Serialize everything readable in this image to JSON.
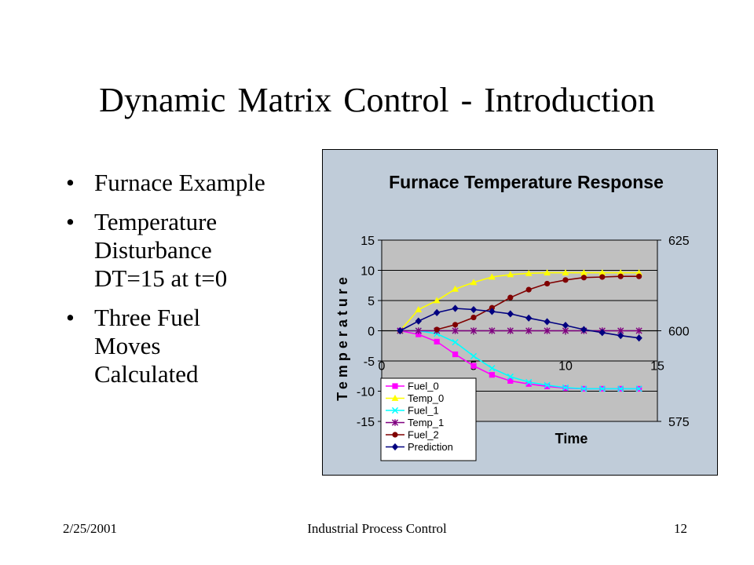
{
  "slide": {
    "title": "Dynamic Matrix Control - Introduction",
    "bullets": [
      {
        "lines": [
          "Furnace Example"
        ]
      },
      {
        "lines": [
          "Temperature",
          "Disturbance",
          "DT=15 at t=0"
        ]
      },
      {
        "lines": [
          "Three Fuel",
          "Moves",
          "Calculated"
        ]
      }
    ]
  },
  "footer": {
    "date": "2/25/2001",
    "center": "Industrial Process Control",
    "page": "12"
  },
  "chart_data": {
    "type": "line",
    "title": "Furnace Temperature Response",
    "xlabel": "Time",
    "ylabel": "Temperature",
    "xlim": [
      0,
      15
    ],
    "ylim": [
      -15,
      15
    ],
    "y_ticks": [
      15,
      10,
      5,
      0,
      -5,
      -10,
      -15
    ],
    "x_ticks": [
      0,
      5,
      10,
      15
    ],
    "y2lim": [
      575,
      625
    ],
    "y2_ticks": [
      625,
      600,
      575
    ],
    "grid": "horizontal",
    "legend_position": "bottom-left",
    "colors": {
      "outer_background": "#C0CCD9",
      "plot_background": "#C0C0C0"
    },
    "x": [
      1,
      2,
      3,
      4,
      5,
      6,
      7,
      8,
      9,
      10,
      11,
      12,
      13,
      14
    ],
    "series": [
      {
        "name": "Fuel_0",
        "color": "#FF00FF",
        "marker": "square",
        "values": [
          0,
          -0.6,
          -1.8,
          -3.9,
          -5.8,
          -7.3,
          -8.3,
          -8.8,
          -9.2,
          -9.5,
          -9.6,
          -9.6,
          -9.6,
          -9.6
        ]
      },
      {
        "name": "Temp_0",
        "color": "#FFFF00",
        "marker": "triangle",
        "values": [
          0,
          3.5,
          5.0,
          6.9,
          8.0,
          8.9,
          9.3,
          9.5,
          9.6,
          9.6,
          9.6,
          9.6,
          9.6,
          9.6
        ]
      },
      {
        "name": "Fuel_1",
        "color": "#00FFFF",
        "marker": "x",
        "values": [
          0,
          0,
          -0.5,
          -1.9,
          -4.2,
          -6.2,
          -7.6,
          -8.5,
          -9.0,
          -9.4,
          -9.6,
          -9.6,
          -9.6,
          -9.6
        ]
      },
      {
        "name": "Temp_1",
        "color": "#800080",
        "marker": "star",
        "values": [
          0,
          0,
          0,
          0,
          0,
          0,
          0,
          0,
          0,
          0,
          0,
          0,
          0,
          0
        ]
      },
      {
        "name": "Fuel_2",
        "color": "#800000",
        "marker": "circle",
        "values": [
          null,
          null,
          0.2,
          1.0,
          2.2,
          3.8,
          5.5,
          6.8,
          7.8,
          8.4,
          8.8,
          8.9,
          9.0,
          9.0
        ]
      },
      {
        "name": "Prediction",
        "color": "#000080",
        "marker": "diamond",
        "values": [
          0,
          1.6,
          3.0,
          3.7,
          3.5,
          3.2,
          2.8,
          2.1,
          1.5,
          0.9,
          0.2,
          -0.3,
          -0.8,
          -1.2
        ]
      }
    ]
  }
}
